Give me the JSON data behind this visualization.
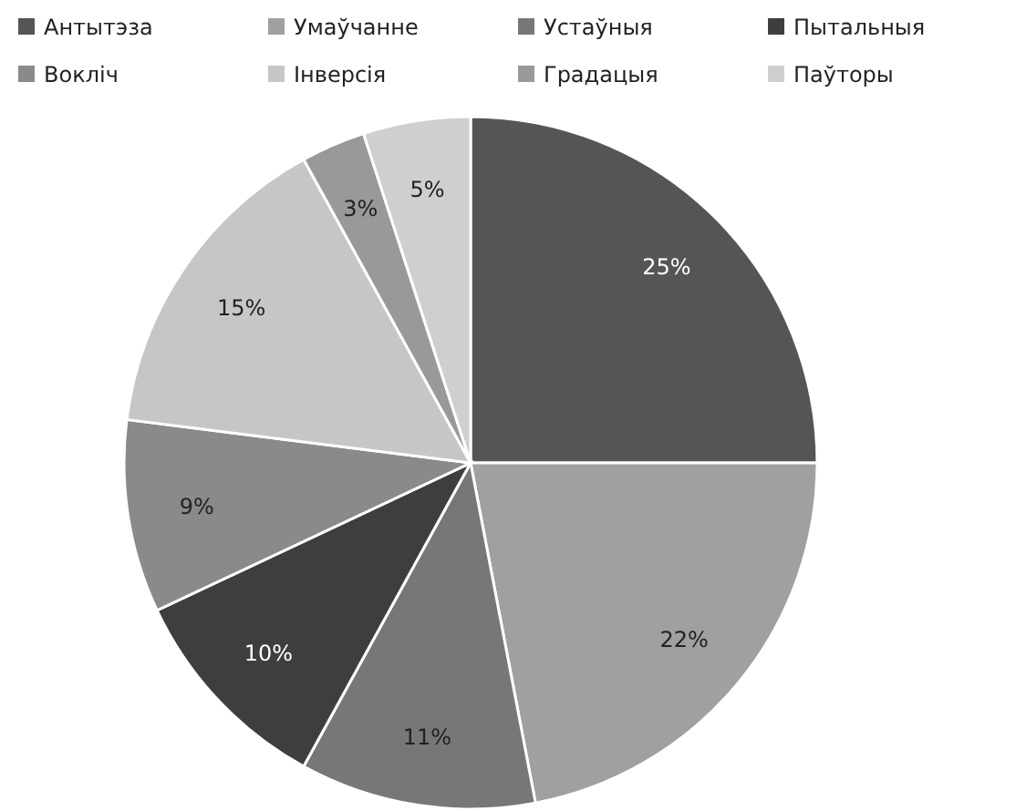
{
  "chart_data": {
    "type": "pie",
    "categories": [
      "Антытэза",
      "Умаўчанне",
      "Устаўныя",
      "Пытальныя",
      "Вокліч",
      "Інверсія",
      "Градацыя",
      "Паўторы"
    ],
    "values": [
      25,
      22,
      11,
      10,
      9,
      15,
      3,
      5
    ],
    "colors": [
      "#555555",
      "#a0a0a0",
      "#777777",
      "#3e3e3e",
      "#8a8a8a",
      "#c6c6c6",
      "#999999",
      "#cfcfcf"
    ],
    "value_labels": [
      "25%",
      "22%",
      "11%",
      "10%",
      "9%",
      "15%",
      "3%",
      "5%"
    ],
    "legend": "top"
  }
}
